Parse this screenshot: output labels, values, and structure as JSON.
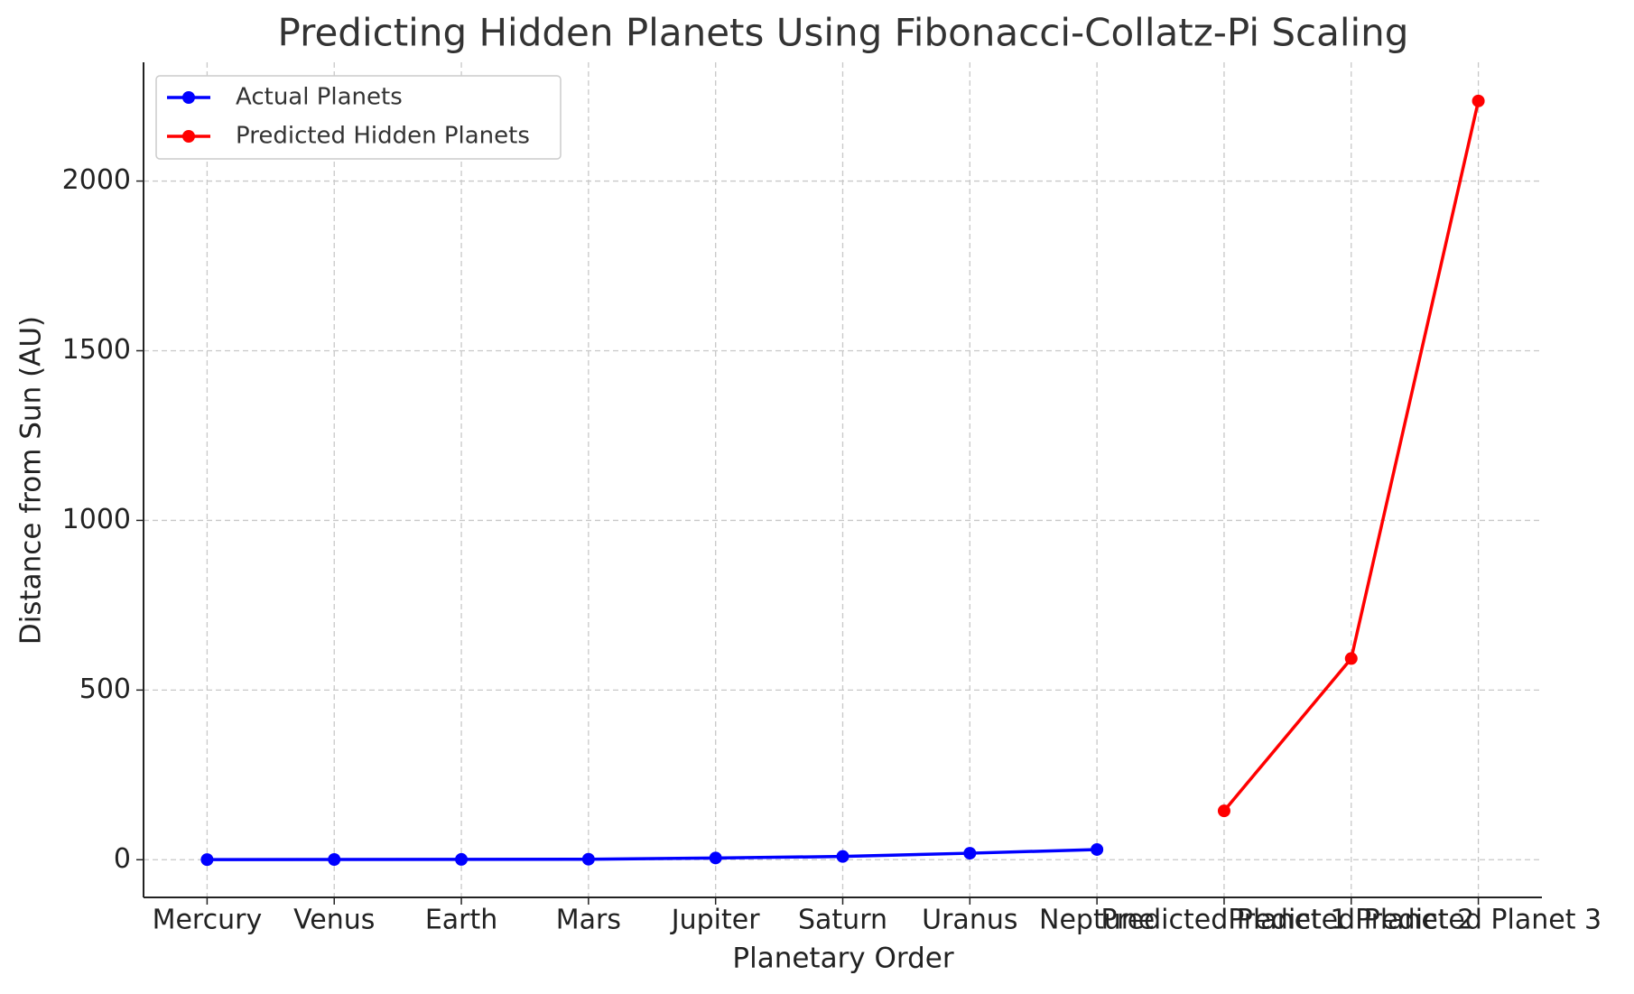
{
  "chart_data": {
    "type": "line",
    "title": "Predicting Hidden Planets Using Fibonacci-Collatz-Pi Scaling",
    "x_label": "Planetary Order",
    "y_label": "Distance from Sun (AU)",
    "categories": [
      "Mercury",
      "Venus",
      "Earth",
      "Mars",
      "Jupiter",
      "Saturn",
      "Uranus",
      "Neptune",
      "Predicted Planet 1",
      "Predicted Planet 2",
      "Predicted Planet 3"
    ],
    "series": [
      {
        "name": "Actual Planets",
        "color": "#0000ff",
        "values": [
          0.39,
          0.72,
          1,
          1.52,
          5.2,
          9.58,
          19.2,
          30.05,
          null,
          null,
          null
        ]
      },
      {
        "name": "Predicted Hidden Planets",
        "color": "#ff0000",
        "values": [
          null,
          null,
          null,
          null,
          null,
          null,
          null,
          null,
          144,
          593,
          2236
        ]
      }
    ],
    "xlim": [
      -0.5,
      10.5
    ],
    "ylim": [
      -111,
      2350
    ],
    "yticks": [
      0,
      500,
      1000,
      1500,
      2000
    ],
    "grid": true,
    "legend": "upper left"
  }
}
